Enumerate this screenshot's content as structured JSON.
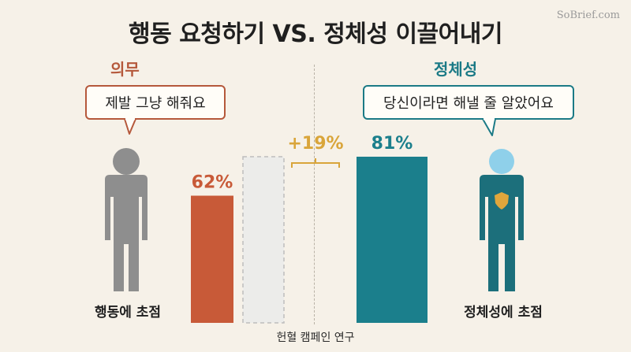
{
  "title": "행동 요청하기 VS. 정체성 이끌어내기",
  "watermark": "SoBrief.com",
  "left": {
    "label": "의무",
    "speech": "제발 그냥 해줘요",
    "caption": "행동에 초점",
    "color": "#b5583b"
  },
  "right": {
    "label": "정체성",
    "speech": "당신이라면 해낼 줄 알았어요",
    "caption": "정체성에 초점",
    "color": "#1b7a86"
  },
  "footer": "헌혈 캠페인 연구",
  "chart_data": {
    "type": "bar",
    "ylim": [
      0,
      100
    ],
    "bars": [
      {
        "value": 62,
        "label": "62%",
        "color": "#c85a38"
      },
      {
        "value": 81,
        "label": "81%",
        "color": "#1b7f8c"
      }
    ],
    "difference": {
      "value": 19,
      "label": "+19%",
      "color": "#d9a53a"
    }
  },
  "colors": {
    "background": "#f6f1e8",
    "figure_left": "#8e8e8e",
    "figure_right": "#1c6f7b",
    "figure_right_head": "#8fd0ea",
    "badge": "#e0a63c"
  }
}
